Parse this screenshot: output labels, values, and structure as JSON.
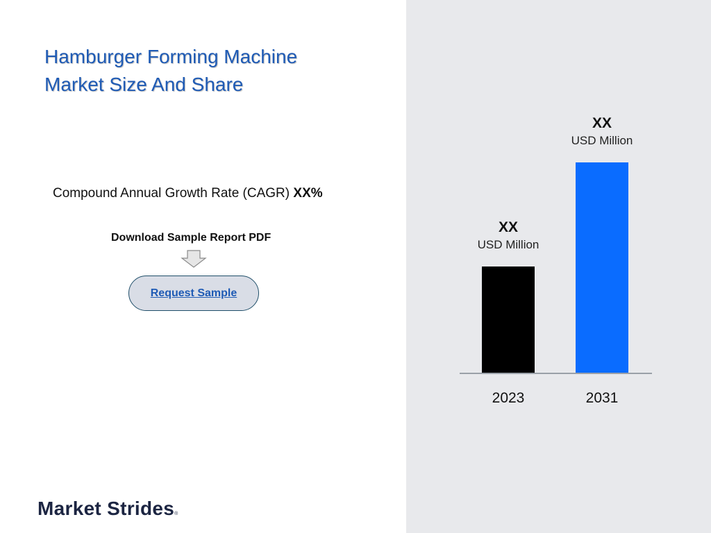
{
  "title": {
    "line1": "Hamburger Forming Machine",
    "line2": "Market Size And Share"
  },
  "cagr": {
    "label": "Compound Annual Growth Rate (CAGR) ",
    "value": "XX",
    "suffix": "%"
  },
  "download_label": "Download Sample Report PDF",
  "request_button": "Request Sample",
  "brand": {
    "name": "Market Strides",
    "mark": "®"
  },
  "colors": {
    "title": "#1f5bb5",
    "bar_2023": "#000000",
    "bar_2031": "#0a6cff",
    "panel": "#e8e9ec"
  },
  "chart_data": {
    "type": "bar",
    "categories": [
      "2023",
      "2031"
    ],
    "values": [
      1,
      1.98
    ],
    "value_labels": [
      "XX",
      "XX"
    ],
    "unit_labels": [
      "USD Million",
      "USD Million"
    ],
    "title": "",
    "xlabel": "",
    "ylabel": "",
    "ylim": [
      0,
      2
    ],
    "grid": false,
    "legend": "none"
  }
}
